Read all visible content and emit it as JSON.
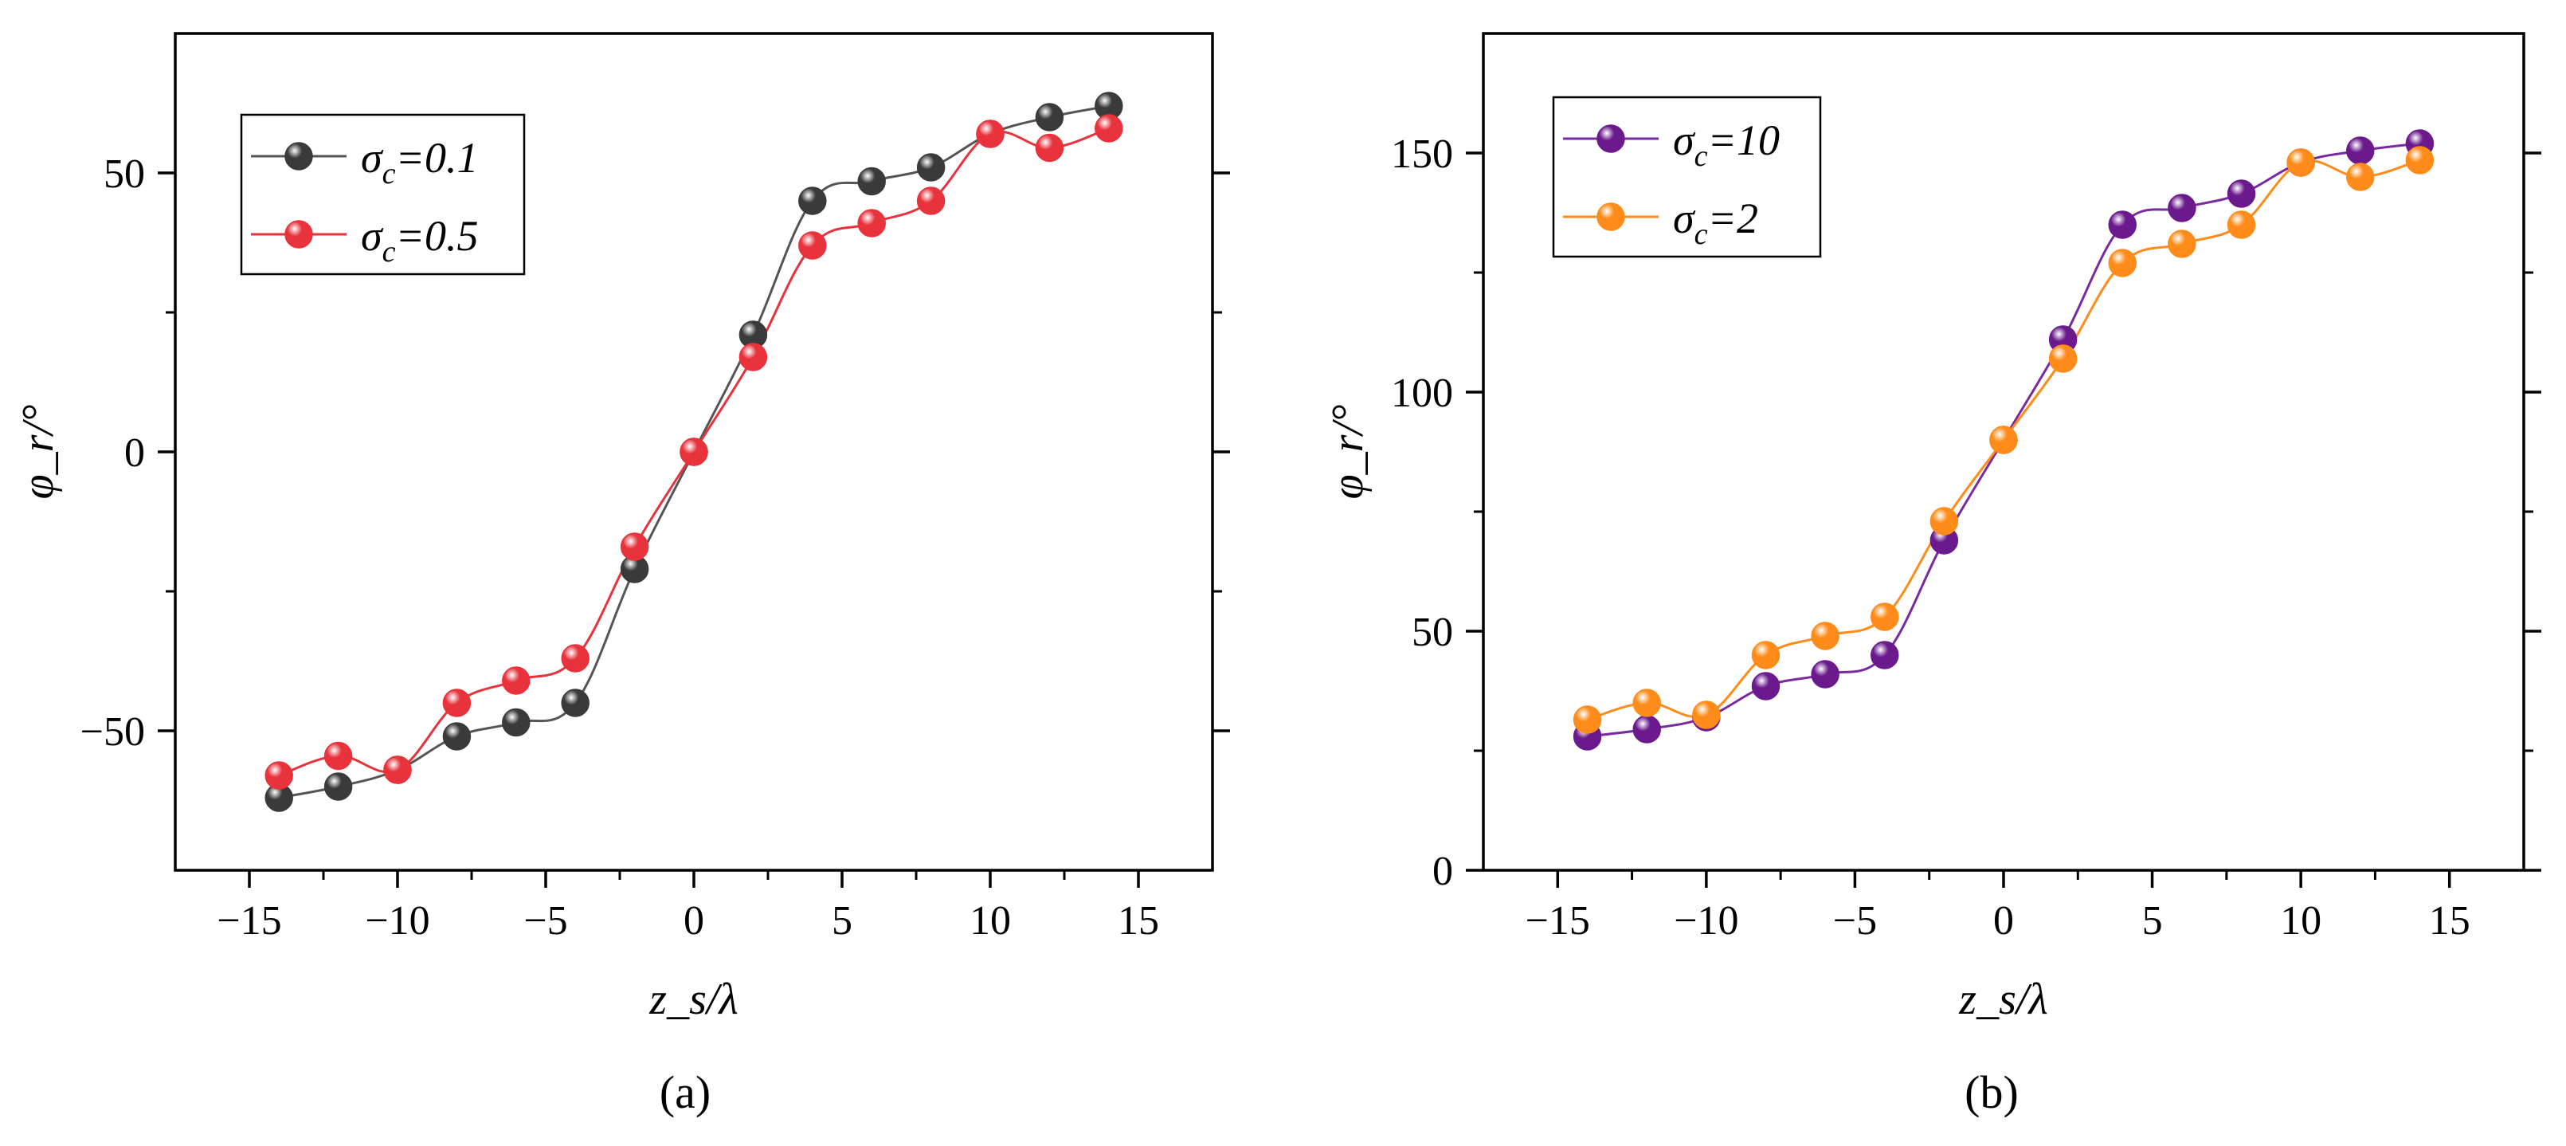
{
  "chart_data": [
    {
      "id": "a",
      "type": "line",
      "caption": "(a)",
      "xlabel": "z_s/λ",
      "ylabel": "φ_r/°",
      "xlim": [
        -17.5,
        17.5
      ],
      "ylim": [
        -75,
        75
      ],
      "xticks": [
        -15,
        -10,
        -5,
        0,
        5,
        10,
        15
      ],
      "xtick_labels": [
        "−15",
        "−10",
        "−5",
        "0",
        "5",
        "10",
        "15"
      ],
      "yticks": [
        -50,
        0,
        50
      ],
      "ytick_labels": [
        "−50",
        "0",
        "50"
      ],
      "legend_position": "top-left",
      "x": [
        -14,
        -12,
        -10,
        -8,
        -6,
        -4,
        -2,
        0,
        2,
        4,
        6,
        8,
        10,
        12,
        14
      ],
      "series": [
        {
          "name": "σc=0.1",
          "symbol": "σ",
          "subscript": "c",
          "eq": "=0.1",
          "color": "#3a3a3a",
          "line_color": "#555555",
          "values": [
            -62,
            -60,
            -57,
            -51,
            -48.5,
            -45,
            -21,
            0,
            21,
            45,
            48.5,
            51,
            57,
            60,
            62
          ]
        },
        {
          "name": "σc=0.5",
          "symbol": "σ",
          "subscript": "c",
          "eq": "=0.5",
          "color": "#e8323c",
          "line_color": "#e8323c",
          "values": [
            -58,
            -54.5,
            -57,
            -45,
            -41,
            -37,
            -17,
            0,
            17,
            37,
            41,
            45,
            57,
            54.5,
            58
          ]
        }
      ]
    },
    {
      "id": "b",
      "type": "line",
      "caption": "(b)",
      "xlabel": "z_s/λ",
      "ylabel": "φ_r/°",
      "xlim": [
        -17.5,
        17.5
      ],
      "ylim": [
        0,
        175
      ],
      "xticks": [
        -15,
        -10,
        -5,
        0,
        5,
        10,
        15
      ],
      "xtick_labels": [
        "−15",
        "−10",
        "−5",
        "0",
        "5",
        "10",
        "15"
      ],
      "yticks": [
        0,
        50,
        100,
        150
      ],
      "ytick_labels": [
        "0",
        "50",
        "100",
        "150"
      ],
      "legend_position": "top-left",
      "x": [
        -14,
        -12,
        -10,
        -8,
        -6,
        -4,
        -2,
        0,
        2,
        4,
        6,
        8,
        10,
        12,
        14
      ],
      "series": [
        {
          "name": "σc=10",
          "symbol": "σ",
          "subscript": "c",
          "eq": "=10",
          "color": "#6a1a8c",
          "line_color": "#7a2aa0",
          "values": [
            28,
            29.5,
            32,
            38.5,
            41,
            45,
            69,
            90,
            111,
            135,
            138.5,
            141.5,
            148,
            150.5,
            152
          ]
        },
        {
          "name": "σc=2",
          "symbol": "σ",
          "subscript": "c",
          "eq": "=2",
          "color": "#ff8c1a",
          "line_color": "#ff8c1a",
          "values": [
            31.5,
            35,
            32.5,
            45,
            49,
            53,
            73,
            90,
            107,
            127,
            131,
            135,
            148,
            145,
            148.5
          ]
        }
      ]
    }
  ]
}
